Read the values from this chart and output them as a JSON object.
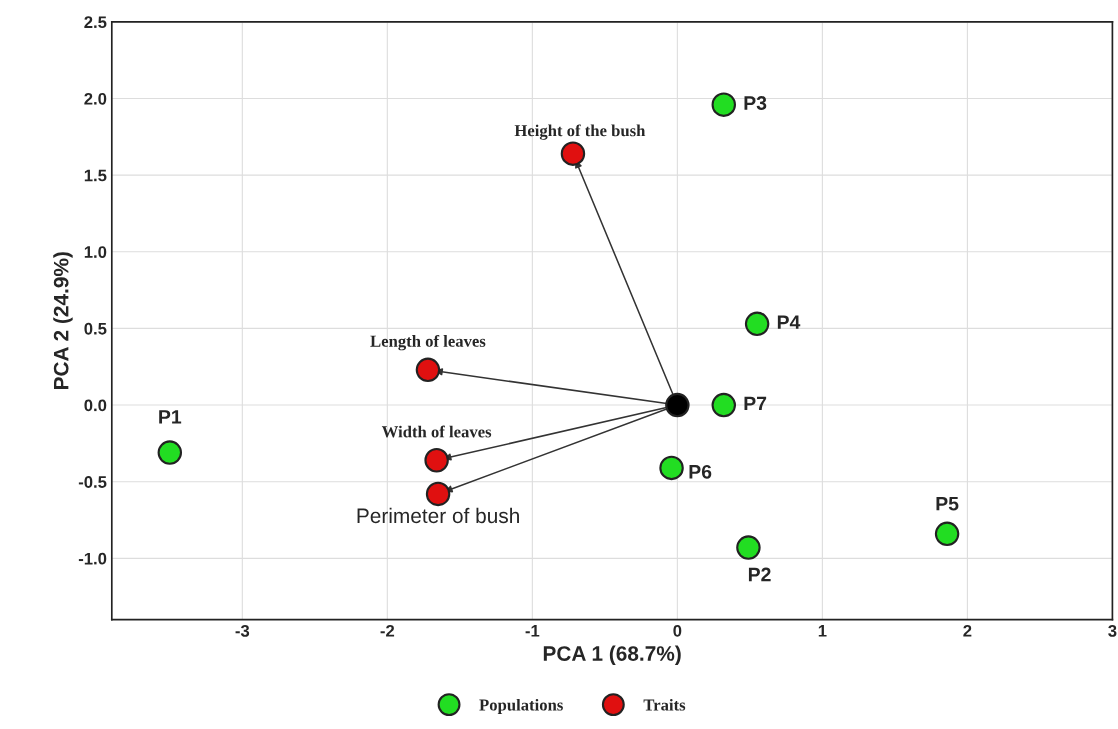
{
  "chart_data": {
    "type": "scatter",
    "xlabel": "PCA 1 (68.7%)",
    "ylabel": "PCA 2 (24.9%)",
    "xlim": [
      -3.9,
      3.0
    ],
    "ylim": [
      -1.4,
      2.5
    ],
    "xticks": [
      -3,
      -2,
      -1,
      0,
      1,
      2,
      3
    ],
    "yticks": [
      {
        "value": -1.0,
        "label": "-1.0"
      },
      {
        "value": -0.5,
        "label": "-0.5"
      },
      {
        "value": 0.0,
        "label": "0.0"
      },
      {
        "value": 0.5,
        "label": "0.5"
      },
      {
        "value": 1.0,
        "label": "1.0"
      },
      {
        "value": 1.5,
        "label": "1.5"
      },
      {
        "value": 2.0,
        "label": "2.0"
      },
      {
        "value": 2.5,
        "label": "2.5"
      }
    ],
    "grid": true,
    "legend": "bottom",
    "marker": "circle",
    "series": [
      {
        "name": "Populations",
        "color": "#22dd22",
        "x": [
          -3.5,
          0.49,
          0.32,
          0.55,
          1.86,
          -0.04,
          0.32
        ],
        "values": [
          -0.31,
          -0.93,
          1.96,
          0.53,
          -0.84,
          -0.41,
          0.0
        ]
      },
      {
        "name": "Traits",
        "color": "#e01010",
        "x": [
          -0.72,
          -1.72,
          -1.66,
          -1.65
        ],
        "values": [
          1.64,
          0.23,
          -0.36,
          -0.58
        ]
      },
      {
        "color": "#000000",
        "x": [
          0
        ],
        "values": [
          0
        ]
      }
    ],
    "annotations": [
      {
        "text": "P1",
        "x": -3.5,
        "y": -0.31
      },
      {
        "text": "P2",
        "x": 0.49,
        "y": -0.93
      },
      {
        "text": "P3",
        "x": 0.32,
        "y": 1.96
      },
      {
        "text": "P4",
        "x": 0.55,
        "y": 0.53
      },
      {
        "text": "P5",
        "x": 1.86,
        "y": -0.84
      },
      {
        "text": "P6",
        "x": -0.04,
        "y": -0.41
      },
      {
        "text": "P7",
        "x": 0.32,
        "y": 0.0
      },
      {
        "text": "Height of the bush",
        "x": -0.72,
        "y": 1.64
      },
      {
        "text": "Length of leaves",
        "x": -1.72,
        "y": 0.23
      },
      {
        "text": "Width of leaves",
        "x": -1.66,
        "y": -0.36
      },
      {
        "text": "Perimeter of bush",
        "x": -1.65,
        "y": -0.58
      }
    ]
  }
}
